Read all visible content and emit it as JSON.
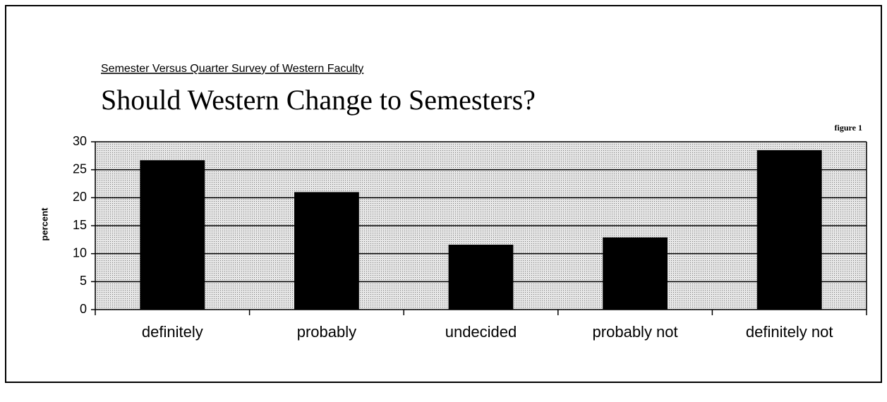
{
  "chart_data": {
    "type": "bar",
    "subtitle": "Semester Versus Quarter Survey of Western Faculty",
    "title": "Should Western Change to Semesters?",
    "annotation": "figure 1",
    "y_label": "percent",
    "categories": [
      "definitely",
      "probably",
      "undecided",
      "probably not",
      "definitely not"
    ],
    "values": [
      26.7,
      21,
      11.6,
      12.9,
      28.5
    ],
    "color": "#000000",
    "ylim": [
      0,
      30
    ],
    "yticks": [
      0,
      5,
      10,
      15,
      20,
      25,
      30
    ],
    "grid": true
  }
}
